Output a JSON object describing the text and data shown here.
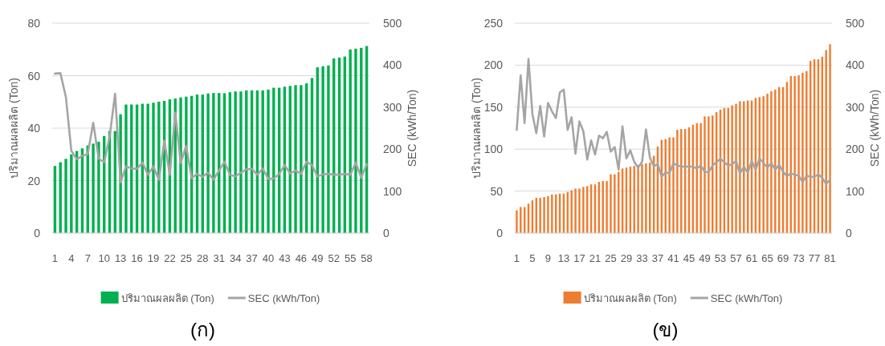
{
  "chart_data": [
    {
      "type": "bar",
      "title": "(ก)",
      "ylabel": "ปริมาณผลผลิต (Ton)",
      "y2label": "SEC (kWh/Ton)",
      "categories": [
        "1",
        null,
        null,
        "4",
        null,
        null,
        "7",
        null,
        null,
        "10",
        null,
        null,
        "13",
        null,
        null,
        "16",
        null,
        null,
        "19",
        null,
        null,
        "22",
        null,
        null,
        "25",
        null,
        null,
        "28",
        null,
        null,
        "31",
        null,
        null,
        "34",
        null,
        null,
        "37",
        null,
        null,
        "40",
        null,
        null,
        "43",
        null,
        null,
        "46",
        null,
        null,
        "49",
        null,
        null,
        "52",
        null,
        null,
        "55",
        null,
        null,
        "58"
      ],
      "series": [
        {
          "name": "ปริมาณผลผลิต (Ton)",
          "color": "#00b050",
          "values": [
            25.6,
            27,
            28.3,
            30,
            31.3,
            32.3,
            33.4,
            34.1,
            34.8,
            37,
            38.9,
            38.9,
            45.3,
            49,
            49,
            49,
            49.3,
            49.3,
            49.7,
            50.1,
            50.4,
            51,
            51.3,
            51.7,
            52,
            52.3,
            52.8,
            52.8,
            53.2,
            53.4,
            53.4,
            53.3,
            53.7,
            54,
            54,
            54.4,
            54.4,
            54.4,
            54.4,
            54.7,
            55.4,
            55.4,
            55.8,
            56.1,
            56.4,
            56.4,
            57.1,
            59.1,
            63.2,
            63.6,
            63.9,
            66.6,
            66.9,
            67.3,
            70,
            70.3,
            70.6,
            71.3
          ]
        },
        {
          "name": "SEC (kWh/Ton)",
          "type": "line",
          "axis": "y2",
          "color": "#a5a5a5",
          "values": [
            380,
            381,
            324,
            196,
            176,
            184,
            188,
            263,
            177,
            169,
            230,
            332,
            121,
            159,
            154,
            153,
            168,
            139,
            159,
            127,
            220,
            139,
            287,
            167,
            208,
            131,
            141,
            134,
            144,
            127,
            149,
            170,
            139,
            135,
            144,
            152,
            153,
            139,
            154,
            129,
            130,
            141,
            162,
            142,
            149,
            141,
            170,
            162,
            135,
            140,
            141,
            139,
            139,
            141,
            139,
            168,
            132,
            164
          ]
        }
      ],
      "ylim": [
        0,
        80
      ],
      "yticks": [
        0,
        20,
        40,
        60,
        80
      ],
      "y2lim": [
        0,
        500
      ],
      "y2ticks": [
        0,
        100,
        200,
        300,
        400,
        500
      ],
      "grid": "y",
      "legend": "bottom"
    },
    {
      "type": "bar",
      "title": "(ข)",
      "ylabel": "ปริมาณผลผลิต (Ton)",
      "y2label": "SEC (kWh/Ton)",
      "categories": [
        "1",
        null,
        null,
        null,
        "5",
        null,
        null,
        null,
        "9",
        null,
        null,
        null,
        "13",
        null,
        null,
        null,
        "17",
        null,
        null,
        null,
        "21",
        null,
        null,
        null,
        "25",
        null,
        null,
        null,
        "29",
        null,
        null,
        null,
        "33",
        null,
        null,
        null,
        "37",
        null,
        null,
        null,
        "41",
        null,
        null,
        null,
        "45",
        null,
        null,
        null,
        "49",
        null,
        null,
        null,
        "53",
        null,
        null,
        null,
        "57",
        null,
        null,
        null,
        "61",
        null,
        null,
        null,
        "65",
        null,
        null,
        null,
        "69",
        null,
        null,
        null,
        "73",
        null,
        null,
        null,
        "77",
        null,
        null,
        null,
        "81"
      ],
      "series": [
        {
          "name": "ปริมาณผลผลิต (Ton)",
          "color": "#ed7d31",
          "values": [
            27,
            31,
            31,
            35,
            39,
            42,
            42,
            43,
            44,
            46,
            46,
            47,
            47,
            49,
            51,
            53,
            53,
            55,
            56,
            58,
            58,
            61,
            62,
            62,
            70,
            70,
            73,
            77,
            78,
            79,
            80,
            81,
            82,
            83,
            84,
            92,
            103,
            111,
            112,
            114,
            114,
            123,
            124,
            124,
            126,
            129,
            131,
            131,
            139,
            139,
            140,
            144,
            147,
            149,
            149,
            152,
            154,
            157,
            157,
            158,
            158,
            161,
            162,
            163,
            166,
            169,
            171,
            174,
            174,
            180,
            187,
            187,
            188,
            191,
            193,
            205,
            207,
            207,
            210,
            218,
            225
          ]
        },
        {
          "name": "SEC (kWh/Ton)",
          "type": "line",
          "axis": "y2",
          "color": "#a5a5a5",
          "values": [
            246,
            376,
            262,
            415,
            284,
            238,
            303,
            230,
            310,
            290,
            274,
            335,
            342,
            246,
            276,
            189,
            266,
            243,
            175,
            221,
            187,
            232,
            226,
            241,
            194,
            205,
            151,
            254,
            178,
            197,
            170,
            156,
            170,
            247,
            180,
            159,
            165,
            134,
            145,
            142,
            167,
            161,
            159,
            158,
            159,
            158,
            154,
            161,
            146,
            145,
            161,
            169,
            177,
            169,
            161,
            164,
            172,
            142,
            158,
            144,
            172,
            151,
            178,
            167,
            156,
            167,
            151,
            163,
            146,
            136,
            142,
            139,
            137,
            121,
            137,
            134,
            134,
            140,
            132,
            117,
            127
          ]
        }
      ],
      "ylim": [
        0,
        250
      ],
      "yticks": [
        0,
        50,
        100,
        150,
        200,
        250
      ],
      "y2lim": [
        0,
        500
      ],
      "y2ticks": [
        0,
        100,
        200,
        300,
        400,
        500
      ],
      "grid": "y",
      "legend": "bottom"
    }
  ]
}
